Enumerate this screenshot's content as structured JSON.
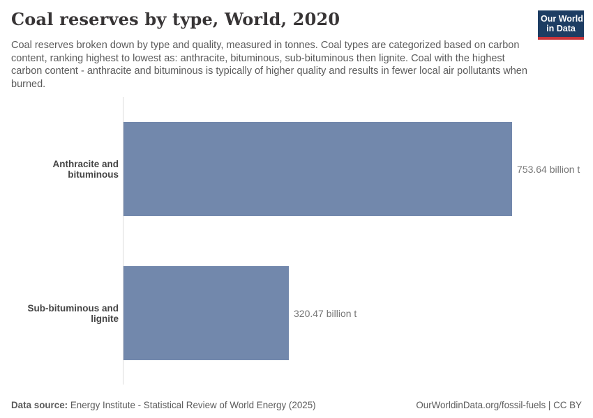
{
  "header": {
    "title": "Coal reserves by type, World, 2020",
    "subtitle": "Coal reserves broken down by type and quality, measured in tonnes. Coal types are categorized based on carbon content, ranking highest to lowest as: anthracite, bituminous, sub-bituminous then lignite. Coal with the highest carbon content - anthracite and bituminous is typically of higher quality and results in fewer local air pollutants when burned.",
    "logo": {
      "line1": "Our World",
      "line2": "in Data"
    }
  },
  "chart_data": {
    "type": "bar",
    "orientation": "horizontal",
    "title": "Coal reserves by type, World, 2020",
    "categories": [
      "Anthracite and bituminous",
      "Sub-bituminous and lignite"
    ],
    "values": [
      753.64,
      320.47
    ],
    "value_labels": [
      "753.64 billion t",
      "320.47 billion t"
    ],
    "unit": "billion t",
    "xlim": [
      0,
      760
    ],
    "grid": false,
    "legend": "none"
  },
  "footer": {
    "source_label": "Data source:",
    "source_text": " Energy Institute - Statistical Review of World Energy (2025)",
    "link_text": "OurWorldinData.org/fossil-fuels | CC BY"
  },
  "colors": {
    "bar": "#7288ac",
    "logo_bg": "#1d3d63",
    "logo_underline": "#c9353a",
    "title_text": "#373435",
    "subtitle_text": "#5b5b5b",
    "axis_line": "#dcdcdc"
  }
}
